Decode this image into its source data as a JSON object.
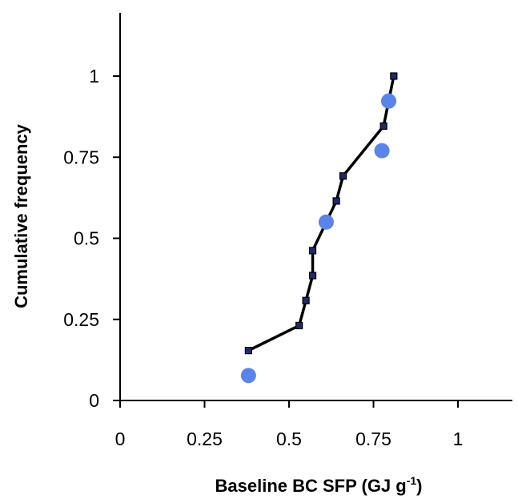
{
  "chart_data": {
    "type": "line",
    "title": "",
    "xlabel_prefix": "Baseline BC SFP (GJ g",
    "xlabel_sup": "-1",
    "xlabel_suffix": ")",
    "ylabel": "Cumulative frequency",
    "xlim": [
      0,
      1.2
    ],
    "ylim": [
      0,
      1.2
    ],
    "x_ticks": [
      {
        "value": 0,
        "label": "0"
      },
      {
        "value": 0.25,
        "label": "0.25"
      },
      {
        "value": 0.5,
        "label": "0.5"
      },
      {
        "value": 0.75,
        "label": "0.75"
      },
      {
        "value": 1,
        "label": "1"
      }
    ],
    "y_ticks": [
      {
        "value": 0,
        "label": "0"
      },
      {
        "value": 0.25,
        "label": "0.25"
      },
      {
        "value": 0.5,
        "label": "0.5"
      },
      {
        "value": 0.75,
        "label": "0.75"
      },
      {
        "value": 1,
        "label": "1"
      }
    ],
    "grid": false,
    "series": [
      {
        "type": "line",
        "marker": "square",
        "color": "#000000",
        "marker_color": "#1f2a6b",
        "points": [
          {
            "x": 0.38,
            "y": 0.154
          },
          {
            "x": 0.53,
            "y": 0.231
          },
          {
            "x": 0.55,
            "y": 0.308
          },
          {
            "x": 0.57,
            "y": 0.385
          },
          {
            "x": 0.57,
            "y": 0.462
          },
          {
            "x": 0.64,
            "y": 0.615
          },
          {
            "x": 0.66,
            "y": 0.692
          },
          {
            "x": 0.78,
            "y": 0.846
          },
          {
            "x": 0.81,
            "y": 1.0
          }
        ]
      },
      {
        "type": "scatter",
        "marker": "circle",
        "color": "#5b84ea",
        "points": [
          {
            "x": 0.38,
            "y": 0.077
          },
          {
            "x": 0.61,
            "y": 0.55
          },
          {
            "x": 0.775,
            "y": 0.77
          },
          {
            "x": 0.795,
            "y": 0.923
          }
        ]
      }
    ]
  }
}
